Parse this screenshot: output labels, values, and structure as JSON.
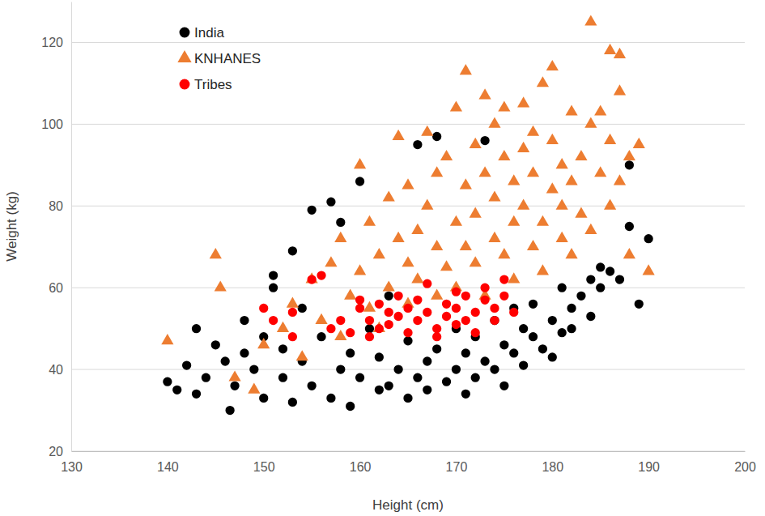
{
  "chart_data": {
    "type": "scatter",
    "xlabel": "Height (cm)",
    "ylabel": "Weight (kg)",
    "xlim": [
      130,
      200
    ],
    "xticks": [
      130,
      140,
      150,
      160,
      170,
      180,
      190,
      200
    ],
    "ylim": [
      20,
      130
    ],
    "yticks": [
      20,
      40,
      60,
      80,
      100,
      120
    ],
    "grid": true,
    "legend": "top-left",
    "series": [
      {
        "name": "India",
        "color": "#000000",
        "marker": "circle",
        "x": [
          140,
          141,
          142,
          143,
          143,
          144,
          145,
          146,
          146.5,
          147,
          148,
          148,
          149,
          150,
          150,
          151,
          151,
          152,
          152,
          153,
          153,
          154,
          154,
          155,
          155,
          156,
          157,
          157,
          158,
          158,
          159,
          159,
          160,
          160,
          161,
          162,
          162,
          163,
          163,
          164,
          165,
          165,
          166,
          166,
          167,
          167,
          168,
          168,
          169,
          170,
          170,
          171,
          171,
          172,
          172,
          173,
          173,
          174,
          174,
          175,
          175,
          176,
          176,
          177,
          177,
          178,
          178,
          179,
          180,
          180,
          181,
          181,
          182,
          182,
          183,
          184,
          184,
          185,
          185,
          186,
          187,
          188,
          188,
          189,
          190
        ],
        "values": [
          37,
          35,
          41,
          34,
          50,
          38,
          46,
          42,
          30,
          36,
          44,
          52,
          40,
          33,
          48,
          60,
          63,
          38,
          45,
          32,
          69,
          42,
          55,
          36,
          79,
          48,
          33,
          81,
          40,
          76,
          31,
          44,
          86,
          38,
          50,
          35,
          43,
          36,
          58,
          40,
          33,
          47,
          38,
          95,
          42,
          35,
          97,
          45,
          37,
          40,
          50,
          34,
          44,
          38,
          48,
          96,
          42,
          40,
          52,
          36,
          46,
          44,
          55,
          41,
          50,
          48,
          56,
          45,
          43,
          52,
          49,
          60,
          50,
          55,
          58,
          53,
          62,
          60,
          65,
          64,
          62,
          75,
          90,
          56,
          72
        ]
      },
      {
        "name": "KNHANES",
        "color": "#ED7D31",
        "marker": "triangle",
        "x": [
          140,
          145,
          145.5,
          147,
          149,
          150,
          152,
          153,
          154,
          155,
          156,
          157,
          158,
          158,
          159,
          160,
          160,
          161,
          161,
          162,
          162,
          163,
          163,
          164,
          164,
          165,
          165,
          165,
          166,
          166,
          167,
          167,
          168,
          168,
          168,
          169,
          169,
          170,
          170,
          170,
          171,
          171,
          171,
          172,
          172,
          172,
          173,
          173,
          173,
          174,
          174,
          174,
          175,
          175,
          175,
          176,
          176,
          176,
          177,
          177,
          177,
          178,
          178,
          178,
          179,
          179,
          179,
          180,
          180,
          180,
          181,
          181,
          181,
          182,
          182,
          182,
          183,
          183,
          184,
          184,
          184,
          185,
          185,
          186,
          186,
          186,
          187,
          187,
          187,
          188,
          188,
          189,
          190
        ],
        "values": [
          47,
          68,
          60,
          38,
          35,
          46,
          50,
          56,
          43,
          62,
          52,
          66,
          48,
          72,
          58,
          90,
          64,
          55,
          76,
          68,
          50,
          82,
          60,
          72,
          97,
          56,
          66,
          85,
          74,
          62,
          98,
          80,
          70,
          58,
          88,
          65,
          92,
          76,
          60,
          104,
          70,
          85,
          113,
          66,
          95,
          78,
          107,
          58,
          88,
          72,
          82,
          100,
          68,
          92,
          104,
          76,
          86,
          62,
          105,
          80,
          94,
          70,
          88,
          98,
          110,
          76,
          64,
          84,
          96,
          114,
          72,
          90,
          80,
          103,
          68,
          86,
          92,
          78,
          125,
          100,
          74,
          88,
          103,
          118,
          96,
          80,
          117,
          108,
          86,
          92,
          68,
          95,
          64
        ]
      },
      {
        "name": "Tribes",
        "color": "#FF0000",
        "marker": "circle",
        "x": [
          150,
          151,
          153,
          153,
          155,
          156,
          157,
          158,
          159,
          160,
          160,
          161,
          161,
          162,
          162,
          163,
          163,
          164,
          164,
          165,
          165,
          166,
          166,
          167,
          167,
          168,
          168,
          169,
          169,
          170,
          170,
          170,
          171,
          171,
          172,
          172,
          173,
          173,
          174,
          174,
          175,
          175,
          176
        ],
        "values": [
          55,
          52,
          54,
          48,
          62,
          63,
          50,
          52,
          49,
          55,
          57,
          52,
          48,
          56,
          50,
          54,
          51,
          58,
          53,
          49,
          55,
          52,
          57,
          54,
          61,
          50,
          48,
          53,
          56,
          51,
          55,
          59,
          58,
          52,
          54,
          49,
          57,
          60,
          55,
          52,
          62,
          58,
          54
        ]
      }
    ]
  }
}
